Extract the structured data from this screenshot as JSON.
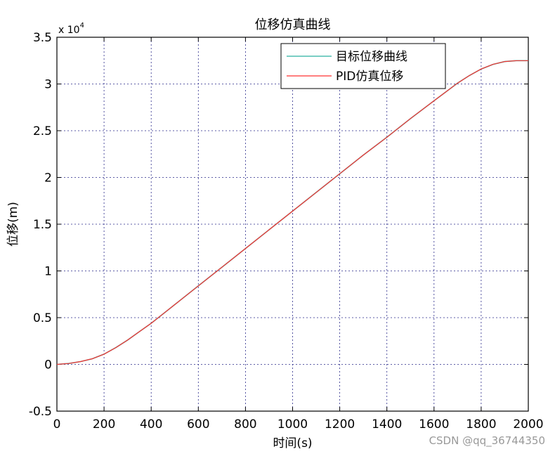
{
  "chart_data": {
    "type": "line",
    "title": "位移仿真曲线",
    "xlabel": "时间(s)",
    "ylabel": "位移(m)",
    "y_exponent_prefix": "x 10",
    "y_exponent_power": "4",
    "xlim": [
      0,
      2000
    ],
    "ylim": [
      -0.5,
      3.5
    ],
    "xticks": [
      "0",
      "200",
      "400",
      "600",
      "800",
      "1000",
      "1200",
      "1400",
      "1600",
      "1800",
      "2000"
    ],
    "yticks": [
      "-0.5",
      "0",
      "0.5",
      "1",
      "1.5",
      "2",
      "2.5",
      "3",
      "3.5"
    ],
    "grid": true,
    "legend_position": "top-right",
    "x": [
      0,
      50,
      100,
      150,
      200,
      250,
      300,
      350,
      400,
      450,
      500,
      600,
      700,
      800,
      900,
      1000,
      1100,
      1200,
      1300,
      1400,
      1500,
      1600,
      1700,
      1750,
      1800,
      1850,
      1900,
      1950,
      2000
    ],
    "series": [
      {
        "name": "目标位移曲线",
        "color": "#2bb0a0",
        "values": [
          0,
          0.01,
          0.03,
          0.06,
          0.11,
          0.18,
          0.26,
          0.35,
          0.44,
          0.54,
          0.64,
          0.84,
          1.04,
          1.24,
          1.44,
          1.64,
          1.84,
          2.04,
          2.24,
          2.43,
          2.63,
          2.82,
          3.01,
          3.09,
          3.16,
          3.21,
          3.24,
          3.25,
          3.25
        ]
      },
      {
        "name": "PID仿真位移",
        "color": "#ff3030",
        "values": [
          0,
          0.01,
          0.03,
          0.06,
          0.11,
          0.18,
          0.26,
          0.35,
          0.44,
          0.54,
          0.64,
          0.84,
          1.04,
          1.24,
          1.44,
          1.64,
          1.84,
          2.04,
          2.24,
          2.43,
          2.63,
          2.82,
          3.01,
          3.09,
          3.16,
          3.21,
          3.24,
          3.25,
          3.25
        ]
      }
    ]
  },
  "watermark": "CSDN @qq_36744350"
}
